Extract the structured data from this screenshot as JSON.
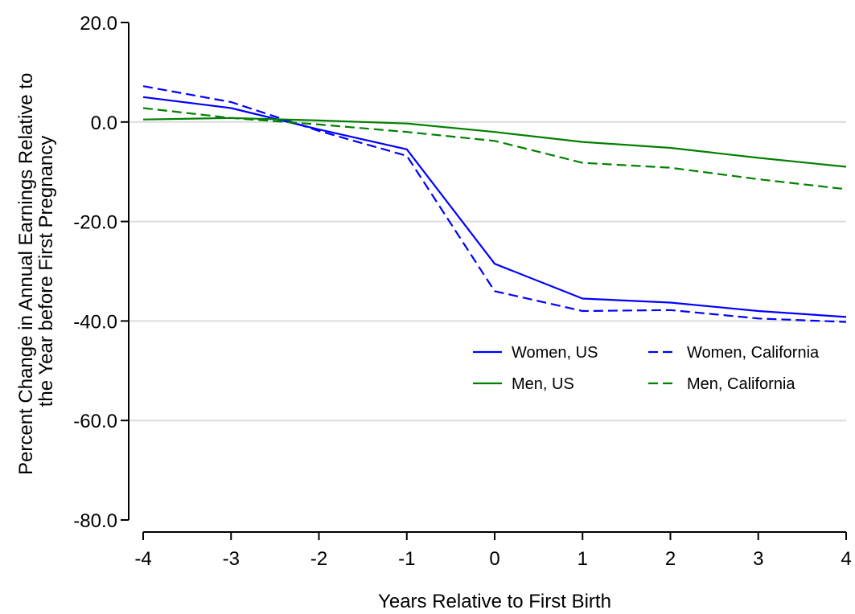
{
  "chart_data": {
    "type": "line",
    "title": "",
    "xlabel": "Years Relative to First Birth",
    "ylabel": "Percent Change in Annual Earnings Relative to the Year before First Pregnancy",
    "ylabel_lines": [
      "Percent Change in Annual Earnings Relative to",
      "the Year before First Pregnancy"
    ],
    "x": [
      -4,
      -3,
      -2,
      -1,
      0,
      1,
      2,
      3,
      4
    ],
    "xticks": [
      "-4",
      "-3",
      "-2",
      "-1",
      "0",
      "1",
      "2",
      "3",
      "4"
    ],
    "xlim": [
      -4,
      4
    ],
    "ylim": [
      -80,
      20
    ],
    "yticks": [
      20,
      0,
      -20,
      -40,
      -60,
      -80
    ],
    "ytick_labels": [
      "20.0",
      "0.0",
      "-20.0",
      "-40.0",
      "-60.0",
      "-80.0"
    ],
    "grid": true,
    "legend_position": "center-right",
    "series": [
      {
        "name": "Women, US",
        "values": [
          5.0,
          2.8,
          -1.5,
          -5.5,
          -28.5,
          -35.5,
          -36.3,
          -38.0,
          -39.2
        ],
        "color": "#0000ff",
        "dash": "solid"
      },
      {
        "name": "Women, California",
        "values": [
          7.2,
          4.0,
          -1.8,
          -6.8,
          -34.0,
          -38.0,
          -37.8,
          -39.5,
          -40.2
        ],
        "color": "#0000ff",
        "dash": "dashed"
      },
      {
        "name": "Men, US",
        "values": [
          0.5,
          0.8,
          0.3,
          -0.3,
          -2.0,
          -4.0,
          -5.2,
          -7.2,
          -9.0
        ],
        "color": "#008000",
        "dash": "solid"
      },
      {
        "name": "Men, California",
        "values": [
          2.8,
          0.8,
          -0.5,
          -2.0,
          -3.8,
          -8.2,
          -9.2,
          -11.5,
          -13.5
        ],
        "color": "#008000",
        "dash": "dashed"
      }
    ]
  }
}
